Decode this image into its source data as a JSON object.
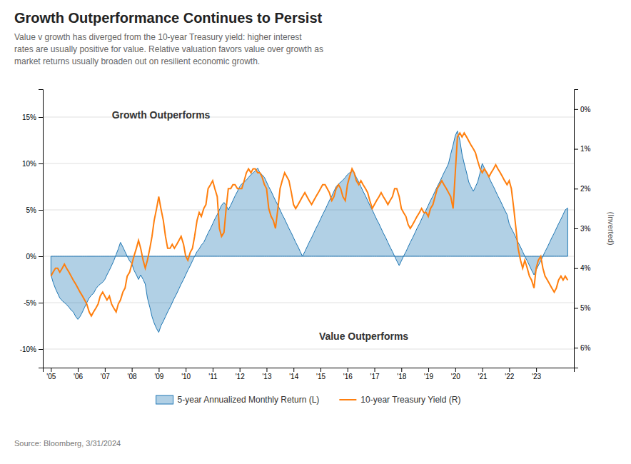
{
  "chart_data": {
    "type": "area",
    "title": "Growth Outperformance Continues to Persist",
    "subtitle": "Value v growth has diverged from the 10-year Treasury yield: higher interest\nrates are usually positive for value. Relative valuation favors value over growth as\nmarket returns usually broaden out on resilient economic growth.",
    "source": "Source: Bloomberg, 3/31/2024",
    "annotations": [
      "Growth Outperforms",
      "Value Outperforms"
    ],
    "y2label": "(Inverted)",
    "grid": true,
    "legend": "bottom",
    "x": [
      2005.0,
      2005.08,
      2005.17,
      2005.25,
      2005.33,
      2005.42,
      2005.5,
      2005.58,
      2005.67,
      2005.75,
      2005.83,
      2005.92,
      2006.0,
      2006.08,
      2006.17,
      2006.25,
      2006.33,
      2006.42,
      2006.5,
      2006.58,
      2006.67,
      2006.75,
      2006.83,
      2006.92,
      2007.0,
      2007.08,
      2007.17,
      2007.25,
      2007.33,
      2007.42,
      2007.5,
      2007.58,
      2007.67,
      2007.75,
      2007.83,
      2007.92,
      2008.0,
      2008.08,
      2008.17,
      2008.25,
      2008.33,
      2008.42,
      2008.5,
      2008.58,
      2008.67,
      2008.75,
      2008.83,
      2008.92,
      2009.0,
      2009.08,
      2009.17,
      2009.25,
      2009.33,
      2009.42,
      2009.5,
      2009.58,
      2009.67,
      2009.75,
      2009.83,
      2009.92,
      2010.0,
      2010.08,
      2010.17,
      2010.25,
      2010.33,
      2010.42,
      2010.5,
      2010.58,
      2010.67,
      2010.75,
      2010.83,
      2010.92,
      2011.0,
      2011.08,
      2011.17,
      2011.25,
      2011.33,
      2011.42,
      2011.5,
      2011.58,
      2011.67,
      2011.75,
      2011.83,
      2011.92,
      2012.0,
      2012.08,
      2012.17,
      2012.25,
      2012.33,
      2012.42,
      2012.5,
      2012.58,
      2012.67,
      2012.75,
      2012.83,
      2012.92,
      2013.0,
      2013.08,
      2013.17,
      2013.25,
      2013.33,
      2013.42,
      2013.5,
      2013.58,
      2013.67,
      2013.75,
      2013.83,
      2013.92,
      2014.0,
      2014.08,
      2014.17,
      2014.25,
      2014.33,
      2014.42,
      2014.5,
      2014.58,
      2014.67,
      2014.75,
      2014.83,
      2014.92,
      2015.0,
      2015.08,
      2015.17,
      2015.25,
      2015.33,
      2015.42,
      2015.5,
      2015.58,
      2015.67,
      2015.75,
      2015.83,
      2015.92,
      2016.0,
      2016.08,
      2016.17,
      2016.25,
      2016.33,
      2016.42,
      2016.5,
      2016.58,
      2016.67,
      2016.75,
      2016.83,
      2016.92,
      2017.0,
      2017.08,
      2017.17,
      2017.25,
      2017.33,
      2017.42,
      2017.5,
      2017.58,
      2017.67,
      2017.75,
      2017.83,
      2017.92,
      2018.0,
      2018.08,
      2018.17,
      2018.25,
      2018.33,
      2018.42,
      2018.5,
      2018.58,
      2018.67,
      2018.75,
      2018.83,
      2018.92,
      2019.0,
      2019.08,
      2019.17,
      2019.25,
      2019.33,
      2019.42,
      2019.5,
      2019.58,
      2019.67,
      2019.75,
      2019.83,
      2019.92,
      2020.0,
      2020.08,
      2020.17,
      2020.25,
      2020.33,
      2020.42,
      2020.5,
      2020.58,
      2020.67,
      2020.75,
      2020.83,
      2020.92,
      2021.0,
      2021.08,
      2021.17,
      2021.25,
      2021.33,
      2021.42,
      2021.5,
      2021.58,
      2021.67,
      2021.75,
      2021.83,
      2021.92,
      2022.0,
      2022.08,
      2022.17,
      2022.25,
      2022.33,
      2022.42,
      2022.5,
      2022.58,
      2022.67,
      2022.75,
      2022.83,
      2022.92,
      2023.0,
      2023.08,
      2023.17,
      2023.25,
      2023.33,
      2023.42,
      2023.5,
      2023.58,
      2023.67,
      2023.75,
      2023.83,
      2023.92,
      2024.0,
      2024.08,
      2024.17
    ],
    "xlim": [
      2004.7,
      2024.4
    ],
    "xticks": [
      {
        "value": 2005,
        "label": "'05"
      },
      {
        "value": 2006,
        "label": "'06"
      },
      {
        "value": 2007,
        "label": "'07"
      },
      {
        "value": 2008,
        "label": "'08"
      },
      {
        "value": 2009,
        "label": "'09"
      },
      {
        "value": 2010,
        "label": "'10"
      },
      {
        "value": 2011,
        "label": "'11"
      },
      {
        "value": 2012,
        "label": "'12"
      },
      {
        "value": 2013,
        "label": "'13"
      },
      {
        "value": 2014,
        "label": "'14"
      },
      {
        "value": 2015,
        "label": "'15"
      },
      {
        "value": 2016,
        "label": "'16"
      },
      {
        "value": 2017,
        "label": "'17"
      },
      {
        "value": 2018,
        "label": "'18"
      },
      {
        "value": 2019,
        "label": "'19"
      },
      {
        "value": 2020,
        "label": "'20"
      },
      {
        "value": 2021,
        "label": "'21"
      },
      {
        "value": 2022,
        "label": "'22"
      },
      {
        "value": 2023,
        "label": "'23"
      }
    ],
    "ylim": [
      -12,
      18
    ],
    "yticks": [
      {
        "value": 15,
        "label": "15%"
      },
      {
        "value": 10,
        "label": "10%"
      },
      {
        "value": 5,
        "label": "5%"
      },
      {
        "value": 0,
        "label": "0%"
      },
      {
        "value": -5,
        "label": "-5%"
      },
      {
        "value": -10,
        "label": "-10%"
      }
    ],
    "y2lim": [
      6.5,
      -0.5
    ],
    "y2ticks": [
      {
        "value": 0,
        "label": "0%"
      },
      {
        "value": 1,
        "label": "1%"
      },
      {
        "value": 2,
        "label": "2%"
      },
      {
        "value": 3,
        "label": "3%"
      },
      {
        "value": 4,
        "label": "4%"
      },
      {
        "value": 5,
        "label": "5%"
      },
      {
        "value": 6,
        "label": "6%"
      }
    ],
    "series": [
      {
        "name": "5-year Annualized Monthly Return (L)",
        "type": "area",
        "values": [
          -2.0,
          -2.8,
          -3.5,
          -4.0,
          -4.5,
          -4.8,
          -5.0,
          -5.2,
          -5.5,
          -5.8,
          -6.0,
          -6.5,
          -6.8,
          -6.5,
          -6.0,
          -5.5,
          -5.0,
          -4.5,
          -4.2,
          -4.0,
          -3.5,
          -3.2,
          -3.0,
          -2.8,
          -2.5,
          -2.0,
          -1.5,
          -1.0,
          -0.5,
          0.2,
          0.8,
          1.5,
          1.0,
          0.5,
          0.0,
          -0.5,
          -0.8,
          -1.5,
          -2.0,
          -2.5,
          -2.0,
          -2.5,
          -3.0,
          -4.5,
          -5.5,
          -6.5,
          -7.2,
          -7.8,
          -8.2,
          -7.5,
          -7.0,
          -6.5,
          -6.0,
          -5.5,
          -5.0,
          -4.5,
          -4.0,
          -3.5,
          -3.0,
          -2.5,
          -2.0,
          -1.5,
          -1.0,
          -0.5,
          0.0,
          0.5,
          0.8,
          1.2,
          1.5,
          2.0,
          2.5,
          3.0,
          3.5,
          4.0,
          4.5,
          5.0,
          5.5,
          5.8,
          5.5,
          5.0,
          5.5,
          6.0,
          6.5,
          7.0,
          7.5,
          7.8,
          8.0,
          8.2,
          8.5,
          8.8,
          9.0,
          9.2,
          9.5,
          9.0,
          8.8,
          8.5,
          8.0,
          7.5,
          7.0,
          6.5,
          6.0,
          5.5,
          5.0,
          4.5,
          4.0,
          3.5,
          3.0,
          2.5,
          2.0,
          1.5,
          1.0,
          0.5,
          0.0,
          0.5,
          1.0,
          1.5,
          2.0,
          2.5,
          3.0,
          3.5,
          4.0,
          4.5,
          5.0,
          5.5,
          6.0,
          6.5,
          7.0,
          7.5,
          7.8,
          8.0,
          8.2,
          8.5,
          8.8,
          9.0,
          9.2,
          9.0,
          8.5,
          8.0,
          7.5,
          7.0,
          6.5,
          6.0,
          5.5,
          5.0,
          4.5,
          4.0,
          3.5,
          3.0,
          2.5,
          2.0,
          1.5,
          1.0,
          0.5,
          0.0,
          -0.5,
          -1.0,
          -0.5,
          0.0,
          0.5,
          1.0,
          1.5,
          2.0,
          2.5,
          3.0,
          3.5,
          4.0,
          4.5,
          5.0,
          5.5,
          6.0,
          6.5,
          7.0,
          7.5,
          8.0,
          8.5,
          9.0,
          9.5,
          10.0,
          11.0,
          12.0,
          13.0,
          13.5,
          12.5,
          11.0,
          10.0,
          9.0,
          8.0,
          7.5,
          7.0,
          7.5,
          8.0,
          9.0,
          10.0,
          9.5,
          9.0,
          8.5,
          8.0,
          7.5,
          7.0,
          6.5,
          6.0,
          5.5,
          5.0,
          4.5,
          3.5,
          3.0,
          2.5,
          2.0,
          1.5,
          1.0,
          0.5,
          0.0,
          -0.5,
          -1.0,
          -1.5,
          -2.0,
          -1.5,
          -1.0,
          -0.5,
          0.0,
          0.5,
          1.0,
          1.5,
          2.0,
          2.5,
          3.0,
          3.5,
          4.0,
          4.5,
          5.0,
          5.2
        ]
      },
      {
        "name": "10-year Treasury Yield (R)",
        "type": "line",
        "axis": "y2",
        "values": [
          4.2,
          4.1,
          4.0,
          4.0,
          4.1,
          4.0,
          3.9,
          4.0,
          4.1,
          4.2,
          4.3,
          4.4,
          4.5,
          4.6,
          4.7,
          4.8,
          4.9,
          5.1,
          5.2,
          5.1,
          5.0,
          4.9,
          4.7,
          4.6,
          4.7,
          4.8,
          4.7,
          4.9,
          5.0,
          5.1,
          4.9,
          4.8,
          4.6,
          4.5,
          4.2,
          4.1,
          3.9,
          3.7,
          3.5,
          3.3,
          3.5,
          3.8,
          4.0,
          3.8,
          3.5,
          3.2,
          2.8,
          2.5,
          2.2,
          2.5,
          2.8,
          3.2,
          3.5,
          3.5,
          3.4,
          3.5,
          3.4,
          3.3,
          3.2,
          3.4,
          3.7,
          3.8,
          3.6,
          3.5,
          3.2,
          2.8,
          2.6,
          2.7,
          2.5,
          2.4,
          2.0,
          1.9,
          1.8,
          2.0,
          2.2,
          3.0,
          3.2,
          3.1,
          2.5,
          2.0,
          2.0,
          1.9,
          1.9,
          2.0,
          2.0,
          2.0,
          1.8,
          1.6,
          1.5,
          1.6,
          1.5,
          1.5,
          1.6,
          1.6,
          1.7,
          1.9,
          2.0,
          2.5,
          2.7,
          2.8,
          3.0,
          2.5,
          2.0,
          1.8,
          1.6,
          1.7,
          1.8,
          2.1,
          2.4,
          2.5,
          2.4,
          2.3,
          2.2,
          2.1,
          2.2,
          2.3,
          2.4,
          2.3,
          2.2,
          2.1,
          2.0,
          1.9,
          1.9,
          2.0,
          2.1,
          2.3,
          2.2,
          2.0,
          1.9,
          2.0,
          2.2,
          2.3,
          1.9,
          1.7,
          1.5,
          1.6,
          1.8,
          1.9,
          1.8,
          1.9,
          2.0,
          2.1,
          2.3,
          2.5,
          2.4,
          2.3,
          2.2,
          2.1,
          2.2,
          2.3,
          2.4,
          2.3,
          2.2,
          2.0,
          2.0,
          2.2,
          2.5,
          2.6,
          2.7,
          2.9,
          3.0,
          2.9,
          2.8,
          2.7,
          2.6,
          2.5,
          2.6,
          2.6,
          2.7,
          2.5,
          2.4,
          2.2,
          2.0,
          1.9,
          1.8,
          1.9,
          2.0,
          2.1,
          2.2,
          2.5,
          1.6,
          0.7,
          0.6,
          0.7,
          0.6,
          0.7,
          0.8,
          0.9,
          1.0,
          1.1,
          1.3,
          1.5,
          1.6,
          1.5,
          1.6,
          1.7,
          1.6,
          1.5,
          1.4,
          1.5,
          1.6,
          1.7,
          1.8,
          1.9,
          1.8,
          2.0,
          2.5,
          3.0,
          3.5,
          3.8,
          4.0,
          3.8,
          4.0,
          4.2,
          4.3,
          4.5,
          4.0,
          3.8,
          3.7,
          4.0,
          4.2,
          4.3,
          4.4,
          4.5,
          4.6,
          4.5,
          4.3,
          4.2,
          4.3,
          4.2,
          4.3
        ]
      }
    ]
  }
}
